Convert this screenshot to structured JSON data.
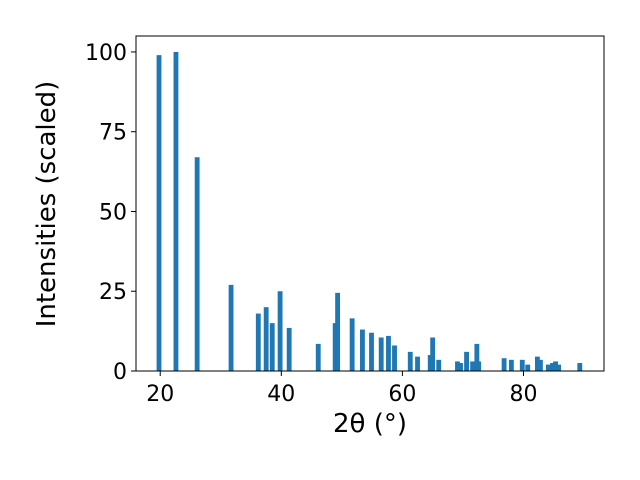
{
  "chart_data": {
    "type": "bar",
    "xlabel": "2θ (°)",
    "ylabel": "Intensities (scaled)",
    "x": [
      19.8,
      22.6,
      26.1,
      31.7,
      36.2,
      37.5,
      38.5,
      39.8,
      41.3,
      46.1,
      48.9,
      49.3,
      51.7,
      53.4,
      54.9,
      56.5,
      57.7,
      58.7,
      61.3,
      62.5,
      64.6,
      65.0,
      66.0,
      69.1,
      69.6,
      70.6,
      71.6,
      72.3,
      72.6,
      76.8,
      78.0,
      79.8,
      80.7,
      82.3,
      82.8,
      84.1,
      84.8,
      85.3,
      85.8,
      89.3
    ],
    "values": [
      99,
      100,
      67,
      27,
      18,
      20,
      15,
      25,
      13.5,
      8.5,
      15,
      24.5,
      16.5,
      13,
      12,
      10.5,
      11,
      8,
      6,
      4.5,
      5,
      10.5,
      3.5,
      3,
      2.5,
      6,
      3,
      8.5,
      3,
      4,
      3.5,
      3.5,
      2,
      4.5,
      3.5,
      2,
      2.5,
      3,
      2,
      2.5
    ],
    "bar_width": 0.8,
    "color": "#1f77b4",
    "xlim": [
      16.0,
      93.3
    ],
    "xticks": [
      20,
      40,
      60,
      80
    ],
    "ylim": [
      0,
      105
    ],
    "yticks": [
      0,
      25,
      50,
      75,
      100
    ]
  }
}
